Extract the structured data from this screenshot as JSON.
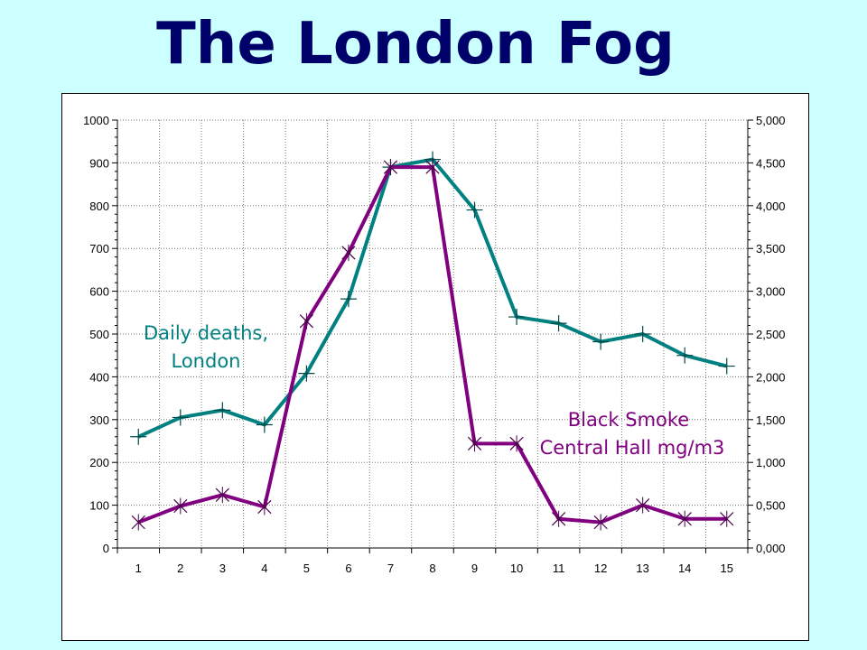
{
  "title": "The London Fog",
  "colors": {
    "background": "#ccffff",
    "title": "#00006b",
    "deaths": "#008080",
    "smoke": "#800080"
  },
  "chart_data": {
    "type": "line",
    "title": "The London Fog",
    "xlabel": "",
    "x": [
      1,
      2,
      3,
      4,
      5,
      6,
      7,
      8,
      9,
      10,
      11,
      12,
      13,
      14,
      15
    ],
    "y_left": {
      "range": [
        0,
        1000
      ],
      "ticks": [
        "0",
        "100",
        "200",
        "300",
        "400",
        "500",
        "600",
        "700",
        "800",
        "900",
        "1000"
      ]
    },
    "y_right": {
      "range": [
        0,
        5000
      ],
      "ticks": [
        "0,000",
        "0,500",
        "1,000",
        "1,500",
        "2,000",
        "2,500",
        "3,000",
        "3,500",
        "4,000",
        "4,500",
        "5,000"
      ]
    },
    "series": [
      {
        "name": "Daily deaths, London",
        "axis": "left",
        "marker": "plus",
        "values": [
          260,
          305,
          322,
          288,
          408,
          582,
          890,
          908,
          790,
          540,
          525,
          482,
          500,
          450,
          425
        ]
      },
      {
        "name": "Black Smoke Central Hall mg/m3",
        "axis": "right",
        "marker": "x",
        "values": [
          300,
          490,
          620,
          480,
          2650,
          3450,
          4450,
          4450,
          1220,
          1220,
          340,
          300,
          500,
          340,
          340
        ]
      }
    ],
    "annotations": [
      {
        "lines": [
          "Daily deaths,",
          "London"
        ],
        "color": "#008080"
      },
      {
        "lines": [
          "Black Smoke",
          "Central Hall mg/m3"
        ],
        "color": "#800080"
      }
    ],
    "grid": true
  }
}
